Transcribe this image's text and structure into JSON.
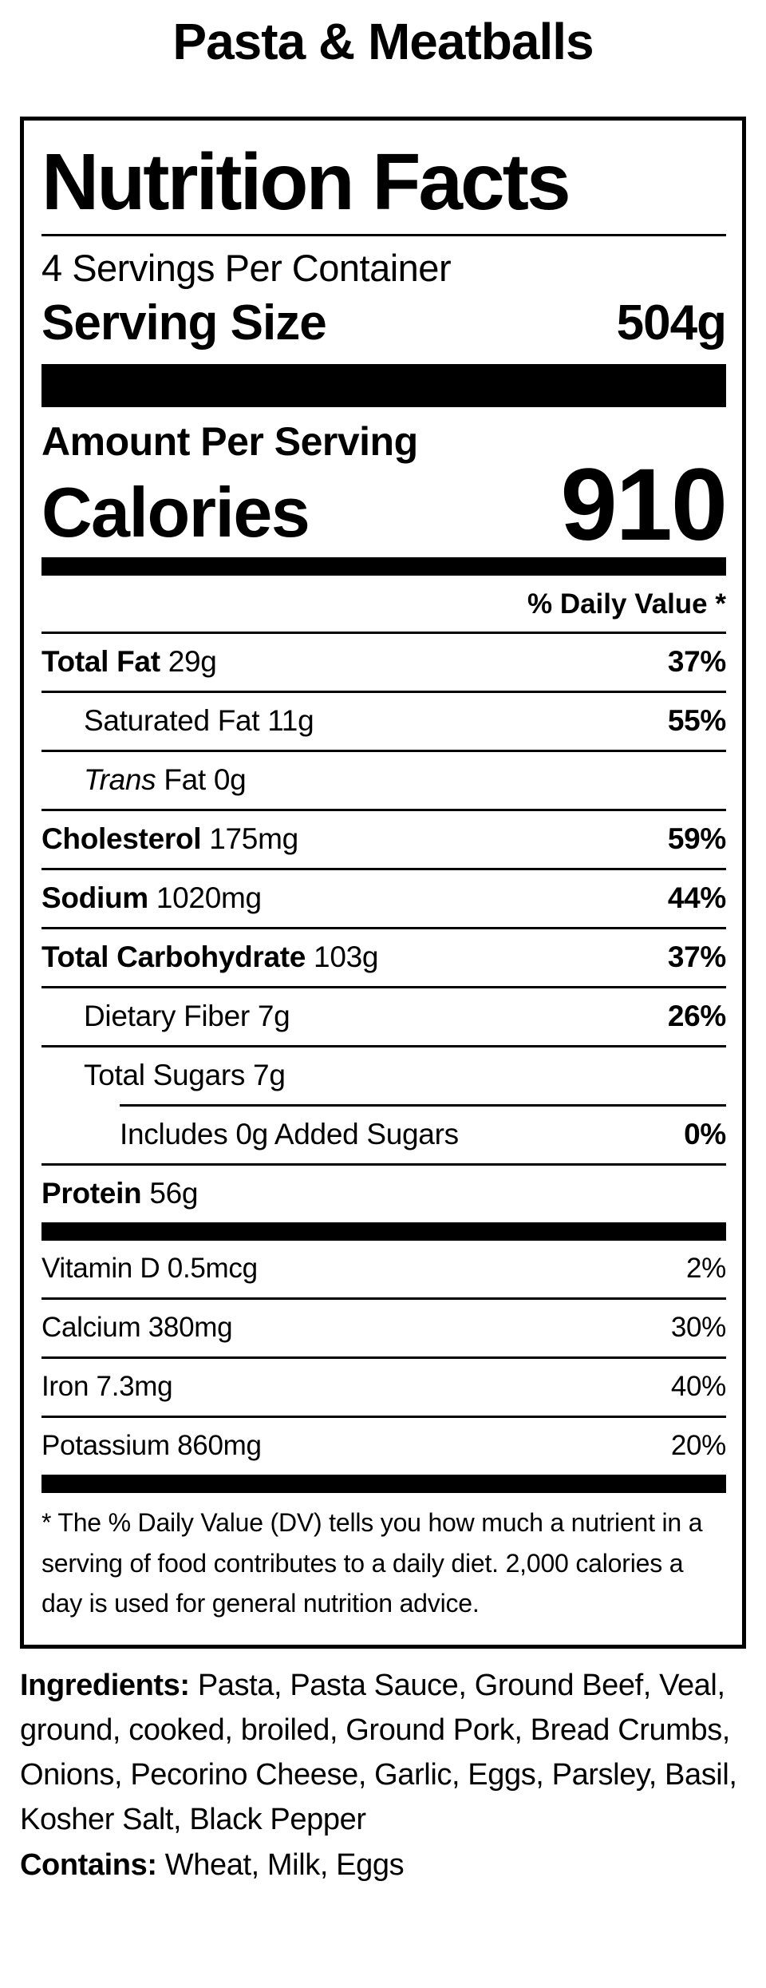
{
  "recipe_title": "Pasta & Meatballs",
  "colors": {
    "ink": "#000000",
    "background": "#ffffff"
  },
  "nutrition_label": {
    "heading": "Nutrition Facts",
    "servings_per_container": "4 Servings Per Container",
    "serving_size": {
      "label": "Serving Size",
      "value": "504g"
    },
    "amount_per_serving": "Amount Per Serving",
    "calories": {
      "label": "Calories",
      "value": "910"
    },
    "daily_value_header": "% Daily Value *",
    "rows": [
      {
        "strong": "Total Fat",
        "text": " 29g",
        "dv": "37%"
      },
      {
        "text": "Saturated Fat 11g",
        "dv": "55%"
      },
      {
        "em": "Trans",
        "text": " Fat 0g",
        "dv": ""
      },
      {
        "strong": "Cholesterol",
        "text": " 175mg",
        "dv": "59%"
      },
      {
        "strong": "Sodium",
        "text": " 1020mg",
        "dv": "44%"
      },
      {
        "strong": "Total Carbohydrate",
        "text": " 103g",
        "dv": "37%"
      },
      {
        "text": "Dietary Fiber 7g",
        "dv": "26%"
      },
      {
        "text": "Total Sugars 7g",
        "dv": ""
      },
      {
        "text": "Includes 0g Added Sugars",
        "dv": "0%"
      },
      {
        "strong": "Protein",
        "text": " 56g",
        "dv": ""
      }
    ],
    "vitamins": [
      {
        "text": "Vitamin D 0.5mcg",
        "dv": "2%"
      },
      {
        "text": "Calcium 380mg",
        "dv": "30%"
      },
      {
        "text": "Iron 7.3mg",
        "dv": "40%"
      },
      {
        "text": "Potassium 860mg",
        "dv": "20%"
      }
    ],
    "footnote": "* The % Daily Value (DV) tells you how much a nutrient in a serving of food contributes to a daily diet. 2,000 calories a day is used for general nutrition advice."
  },
  "ingredients": {
    "label": "Ingredients:",
    "text": " Pasta, Pasta Sauce, Ground Beef, Veal, ground, cooked, broiled, Ground Pork, Bread Crumbs, Onions, Pecorino Cheese, Garlic, Eggs, Parsley, Basil, Kosher Salt, Black Pepper"
  },
  "contains": {
    "label": "Contains:",
    "text": " Wheat, Milk, Eggs"
  }
}
